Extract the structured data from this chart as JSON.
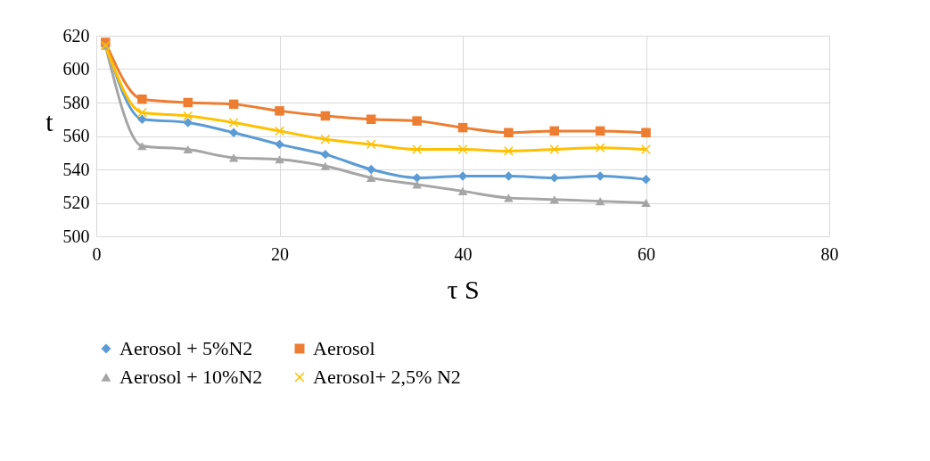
{
  "chart_data": {
    "type": "line",
    "xlabel": "τ S",
    "ylabel": "t",
    "x": [
      1,
      5,
      10,
      15,
      20,
      25,
      30,
      35,
      40,
      45,
      50,
      55,
      60
    ],
    "xlim": [
      0,
      80
    ],
    "xticks": [
      0,
      20,
      40,
      60,
      80
    ],
    "ylim": [
      500,
      620
    ],
    "yticks": [
      500,
      520,
      540,
      560,
      580,
      600,
      620
    ],
    "grid": true,
    "legend": "bottom",
    "series": [
      {
        "name": "Aerosol + 5%N2",
        "color": "#5b9bd5",
        "marker": "diamond",
        "values": [
          615,
          570,
          568,
          562,
          555,
          549,
          540,
          535,
          536,
          536,
          535,
          536,
          534
        ]
      },
      {
        "name": "Aerosol",
        "color": "#ed7d31",
        "marker": "square",
        "values": [
          616,
          582,
          580,
          579,
          575,
          572,
          570,
          569,
          565,
          562,
          563,
          563,
          562
        ]
      },
      {
        "name": "Aerosol + 10%N2",
        "color": "#a5a5a5",
        "marker": "triangle",
        "values": [
          614,
          554,
          552,
          547,
          546,
          542,
          535,
          531,
          527,
          523,
          522,
          521,
          520
        ]
      },
      {
        "name": "Aerosol+ 2,5% N2",
        "color": "#ffc000",
        "marker": "cross",
        "values": [
          614,
          574,
          572,
          568,
          563,
          558,
          555,
          552,
          552,
          551,
          552,
          553,
          552
        ]
      }
    ]
  }
}
